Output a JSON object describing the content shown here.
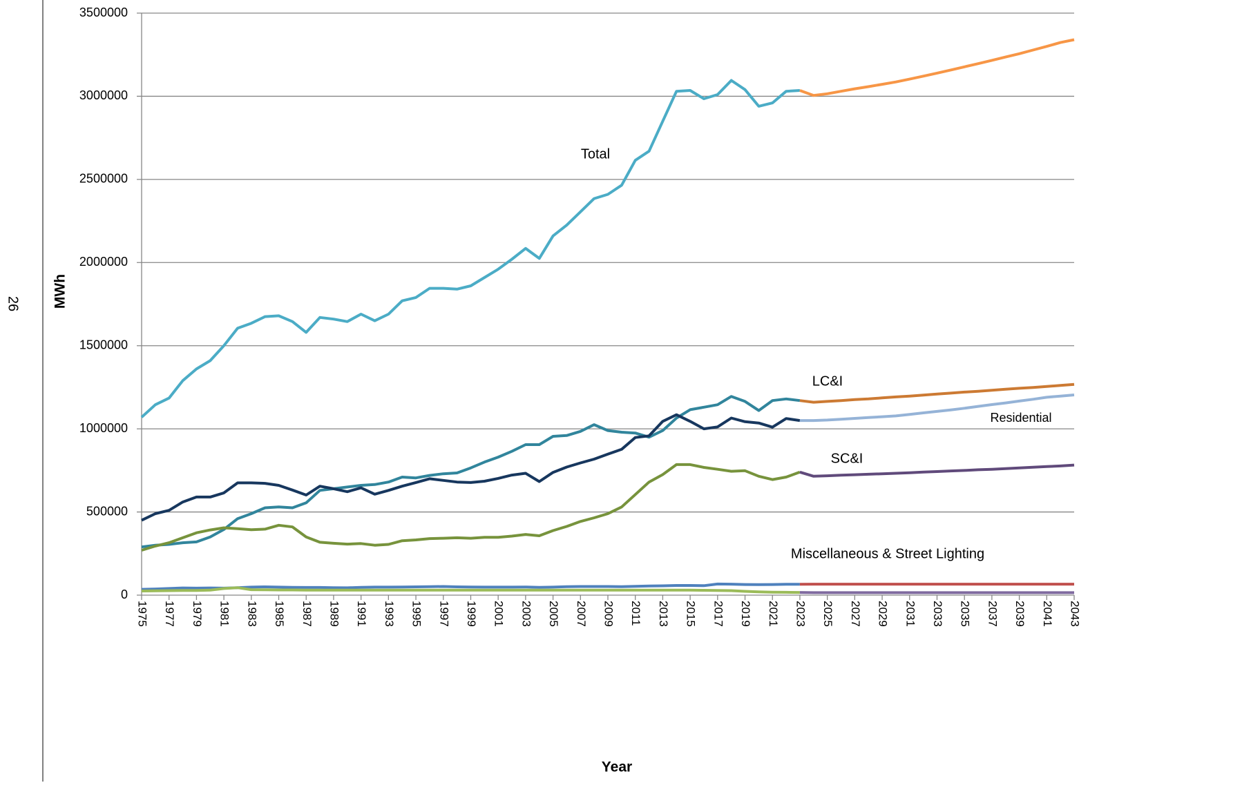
{
  "page_number": "26",
  "chart_data": {
    "type": "line",
    "xlabel": "Year",
    "ylabel": "MWh",
    "x": [
      1975,
      1976,
      1977,
      1978,
      1979,
      1980,
      1981,
      1982,
      1983,
      1984,
      1985,
      1986,
      1987,
      1988,
      1989,
      1990,
      1991,
      1992,
      1993,
      1994,
      1995,
      1996,
      1997,
      1998,
      1999,
      2000,
      2001,
      2002,
      2003,
      2004,
      2005,
      2006,
      2007,
      2008,
      2009,
      2010,
      2011,
      2012,
      2013,
      2014,
      2015,
      2016,
      2017,
      2018,
      2019,
      2020,
      2021,
      2022,
      2023,
      2024,
      2025,
      2026,
      2027,
      2028,
      2029,
      2030,
      2031,
      2032,
      2033,
      2034,
      2035,
      2036,
      2037,
      2038,
      2039,
      2040,
      2041,
      2042,
      2043
    ],
    "xlim": [
      1975,
      2043
    ],
    "xticks": [
      1975,
      1977,
      1979,
      1981,
      1983,
      1985,
      1987,
      1989,
      1991,
      1993,
      1995,
      1997,
      1999,
      2001,
      2003,
      2005,
      2007,
      2009,
      2011,
      2013,
      2015,
      2017,
      2019,
      2021,
      2023,
      2025,
      2027,
      2029,
      2031,
      2033,
      2035,
      2037,
      2039,
      2041,
      2043
    ],
    "ylim": [
      0,
      3500000
    ],
    "yticks": [
      0,
      500000,
      1000000,
      1500000,
      2000000,
      2500000,
      3000000,
      3500000
    ],
    "grid": true,
    "series": [
      {
        "name": "Total",
        "color": "#4bacc6",
        "values": [
          1070000,
          1145000,
          1185000,
          1290000,
          1360000,
          1410000,
          1500000,
          1605000,
          1635000,
          1675000,
          1680000,
          1645000,
          1580000,
          1670000,
          1660000,
          1645000,
          1690000,
          1650000,
          1690000,
          1770000,
          1790000,
          1845000,
          1845000,
          1840000,
          1860000,
          1910000,
          1960000,
          2020000,
          2085000,
          2025000,
          2160000,
          2225000,
          2305000,
          2385000,
          2410000,
          2465000,
          2615000,
          2670000,
          2850000,
          3030000,
          3035000,
          2985000,
          3010000,
          3095000,
          3040000,
          2940000,
          2960000,
          3030000,
          3035000,
          null,
          null,
          null,
          null,
          null,
          null,
          null,
          null,
          null,
          null,
          null,
          null,
          null,
          null,
          null,
          null,
          null,
          null,
          null,
          null
        ]
      },
      {
        "color": "#f79646",
        "values": [
          null,
          null,
          null,
          null,
          null,
          null,
          null,
          null,
          null,
          null,
          null,
          null,
          null,
          null,
          null,
          null,
          null,
          null,
          null,
          null,
          null,
          null,
          null,
          null,
          null,
          null,
          null,
          null,
          null,
          null,
          null,
          null,
          null,
          null,
          null,
          null,
          null,
          null,
          null,
          null,
          null,
          null,
          null,
          null,
          null,
          null,
          null,
          null,
          3035000,
          3005000,
          3015000,
          3030000,
          3045000,
          3058000,
          3072000,
          3086000,
          3103000,
          3121000,
          3139000,
          3158000,
          3177000,
          3196000,
          3216000,
          3236000,
          3256000,
          3278000,
          3300000,
          3323000,
          3340000
        ]
      },
      {
        "name": "LC&I",
        "color": "#31859c",
        "values": [
          290000,
          300000,
          305000,
          315000,
          320000,
          350000,
          395000,
          460000,
          490000,
          525000,
          530000,
          525000,
          555000,
          630000,
          640000,
          650000,
          660000,
          665000,
          680000,
          710000,
          705000,
          720000,
          730000,
          735000,
          765000,
          800000,
          830000,
          865000,
          905000,
          905000,
          955000,
          960000,
          985000,
          1025000,
          990000,
          980000,
          975000,
          950000,
          990000,
          1065000,
          1115000,
          1130000,
          1145000,
          1195000,
          1165000,
          1110000,
          1170000,
          1180000,
          1170000,
          null,
          null,
          null,
          null,
          null,
          null,
          null,
          null,
          null,
          null,
          null,
          null,
          null,
          null,
          null,
          null,
          null,
          null,
          null,
          null
        ]
      },
      {
        "color": "#cc7a33",
        "values": [
          null,
          null,
          null,
          null,
          null,
          null,
          null,
          null,
          null,
          null,
          null,
          null,
          null,
          null,
          null,
          null,
          null,
          null,
          null,
          null,
          null,
          null,
          null,
          null,
          null,
          null,
          null,
          null,
          null,
          null,
          null,
          null,
          null,
          null,
          null,
          null,
          null,
          null,
          null,
          null,
          null,
          null,
          null,
          null,
          null,
          null,
          null,
          null,
          1170000,
          1160000,
          1165000,
          1170000,
          1176000,
          1180000,
          1186000,
          1192000,
          1197000,
          1203000,
          1209000,
          1215000,
          1221000,
          1226000,
          1232000,
          1238000,
          1244000,
          1249000,
          1255000,
          1261000,
          1267000
        ]
      },
      {
        "name": "Residential",
        "color": "#17375e",
        "values": [
          450000,
          490000,
          510000,
          560000,
          590000,
          590000,
          615000,
          675000,
          675000,
          672000,
          660000,
          632000,
          602000,
          655000,
          640000,
          622000,
          645000,
          607000,
          630000,
          655000,
          677000,
          700000,
          690000,
          680000,
          677000,
          685000,
          702000,
          722000,
          733000,
          683000,
          738000,
          770000,
          795000,
          818000,
          848000,
          877000,
          948000,
          958000,
          1045000,
          1085000,
          1045000,
          1000000,
          1012000,
          1065000,
          1043000,
          1035000,
          1010000,
          1062000,
          1050000,
          null,
          null,
          null,
          null,
          null,
          null,
          null,
          null,
          null,
          null,
          null,
          null,
          null,
          null,
          null,
          null,
          null,
          null,
          null,
          null
        ]
      },
      {
        "color": "#95b3d7",
        "values": [
          null,
          null,
          null,
          null,
          null,
          null,
          null,
          null,
          null,
          null,
          null,
          null,
          null,
          null,
          null,
          null,
          null,
          null,
          null,
          null,
          null,
          null,
          null,
          null,
          null,
          null,
          null,
          null,
          null,
          null,
          null,
          null,
          null,
          null,
          null,
          null,
          null,
          null,
          null,
          null,
          null,
          null,
          null,
          null,
          null,
          null,
          null,
          null,
          1050000,
          1050000,
          1053000,
          1058000,
          1063000,
          1068000,
          1073000,
          1078000,
          1087000,
          1096000,
          1105000,
          1114000,
          1124000,
          1135000,
          1146000,
          1156000,
          1167000,
          1178000,
          1190000,
          1197000,
          1204000
        ]
      },
      {
        "name": "SC&I",
        "color": "#77933c",
        "values": [
          270000,
          295000,
          315000,
          345000,
          375000,
          392000,
          405000,
          400000,
          393000,
          397000,
          420000,
          410000,
          350000,
          318000,
          312000,
          307000,
          310000,
          300000,
          305000,
          327000,
          332000,
          340000,
          342000,
          345000,
          342000,
          348000,
          348000,
          355000,
          365000,
          357000,
          388000,
          413000,
          443000,
          465000,
          490000,
          530000,
          605000,
          680000,
          725000,
          785000,
          785000,
          768000,
          757000,
          745000,
          748000,
          715000,
          695000,
          710000,
          740000,
          null,
          null,
          null,
          null,
          null,
          null,
          null,
          null,
          null,
          null,
          null,
          null,
          null,
          null,
          null,
          null,
          null,
          null,
          null,
          null
        ]
      },
      {
        "color": "#604a7b",
        "values": [
          null,
          null,
          null,
          null,
          null,
          null,
          null,
          null,
          null,
          null,
          null,
          null,
          null,
          null,
          null,
          null,
          null,
          null,
          null,
          null,
          null,
          null,
          null,
          null,
          null,
          null,
          null,
          null,
          null,
          null,
          null,
          null,
          null,
          null,
          null,
          null,
          null,
          null,
          null,
          null,
          null,
          null,
          null,
          null,
          null,
          null,
          null,
          null,
          740000,
          715000,
          718000,
          721000,
          724000,
          727000,
          730000,
          733000,
          736000,
          740000,
          743000,
          747000,
          750000,
          754000,
          757000,
          761000,
          765000,
          769000,
          773000,
          777000,
          782000
        ]
      },
      {
        "name": "Miscellaneous & Street Lighting",
        "color": "#4f81bd",
        "values": [
          35000,
          37000,
          40000,
          43000,
          42000,
          43000,
          42000,
          45000,
          48000,
          50000,
          48000,
          47000,
          46000,
          46000,
          45000,
          44000,
          47000,
          48000,
          48000,
          49000,
          50000,
          51000,
          52000,
          50000,
          49000,
          48000,
          48000,
          48000,
          49000,
          47000,
          48000,
          51000,
          52000,
          52000,
          52000,
          51000,
          53000,
          55000,
          56000,
          58000,
          58000,
          57000,
          67000,
          66000,
          64000,
          63000,
          64000,
          65000,
          65000,
          null,
          null,
          null,
          null,
          null,
          null,
          null,
          null,
          null,
          null,
          null,
          null,
          null,
          null,
          null,
          null,
          null,
          null,
          null,
          null
        ]
      },
      {
        "color": "#c0504d",
        "values": [
          null,
          null,
          null,
          null,
          null,
          null,
          null,
          null,
          null,
          null,
          null,
          null,
          null,
          null,
          null,
          null,
          null,
          null,
          null,
          null,
          null,
          null,
          null,
          null,
          null,
          null,
          null,
          null,
          null,
          null,
          null,
          null,
          null,
          null,
          null,
          null,
          null,
          null,
          null,
          null,
          null,
          null,
          null,
          null,
          null,
          null,
          null,
          null,
          65000,
          66000,
          66000,
          66000,
          66000,
          66000,
          66000,
          66000,
          66000,
          66000,
          66000,
          66000,
          66000,
          66000,
          66000,
          66000,
          66000,
          66000,
          66000,
          66000,
          66000
        ]
      },
      {
        "color": "#9bbb59",
        "values": [
          25000,
          26000,
          27000,
          28000,
          28000,
          30000,
          40000,
          45000,
          33000,
          32000,
          31000,
          31000,
          30000,
          30000,
          30000,
          30000,
          30000,
          30000,
          30000,
          30000,
          30000,
          30000,
          30000,
          30000,
          30000,
          30000,
          30000,
          30000,
          30000,
          30000,
          30000,
          30000,
          30000,
          30000,
          30000,
          30000,
          30000,
          30000,
          30000,
          30000,
          30000,
          29000,
          28000,
          27000,
          23000,
          20000,
          18000,
          17000,
          16000,
          null,
          null,
          null,
          null,
          null,
          null,
          null,
          null,
          null,
          null,
          null,
          null,
          null,
          null,
          null,
          null,
          null,
          null,
          null,
          null
        ]
      },
      {
        "color": "#7f6a9f",
        "values": [
          null,
          null,
          null,
          null,
          null,
          null,
          null,
          null,
          null,
          null,
          null,
          null,
          null,
          null,
          null,
          null,
          null,
          null,
          null,
          null,
          null,
          null,
          null,
          null,
          null,
          null,
          null,
          null,
          null,
          null,
          null,
          null,
          null,
          null,
          null,
          null,
          null,
          null,
          null,
          null,
          null,
          null,
          null,
          null,
          null,
          null,
          null,
          null,
          16000,
          15000,
          15000,
          15000,
          15000,
          15000,
          15000,
          15000,
          15000,
          15000,
          15000,
          15000,
          15000,
          15000,
          15000,
          15000,
          15000,
          15000,
          15000,
          15000,
          15000
        ]
      }
    ]
  }
}
